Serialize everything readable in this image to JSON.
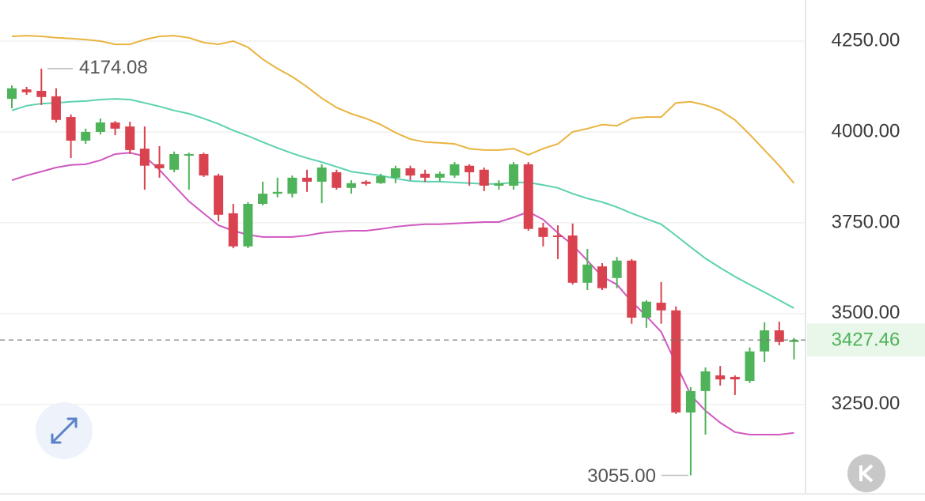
{
  "chart_data": {
    "type": "candlestick",
    "ylim": [
      3004,
      4363
    ],
    "yticks": [
      {
        "value": 4250,
        "label": "4250.00"
      },
      {
        "value": 4000,
        "label": "4000.00"
      },
      {
        "value": 3750,
        "label": "3750.00"
      },
      {
        "value": 3500,
        "label": "3500.00"
      },
      {
        "value": 3250,
        "label": "3250.00"
      }
    ],
    "grid": true,
    "up_color": "#4fb35a",
    "down_color": "#d8434f",
    "open": [
      4091,
      4117,
      4113,
      4098,
      4041,
      3976,
      4000,
      4026,
      4015,
      3954,
      3911,
      3896,
      3935,
      3939,
      3880,
      3776,
      3685,
      3802,
      3830,
      3830,
      3874,
      3863,
      3889,
      3846,
      3863,
      3859,
      3874,
      3900,
      3885,
      3874,
      3880,
      3907,
      3896,
      3852,
      3852,
      3911,
      3737,
      3715,
      3715,
      3585,
      3630,
      3598,
      3646,
      3489,
      3530,
      3509,
      3228,
      3287,
      3330,
      3326,
      3315,
      3396,
      3454,
      3422
    ],
    "high": [
      4128,
      4124,
      4174.08,
      4120,
      4048,
      4009,
      4037,
      4030,
      4028,
      4015,
      3961,
      3946,
      3943,
      3943,
      3885,
      3802,
      3807,
      3863,
      3874,
      3880,
      3896,
      3911,
      3896,
      3867,
      3867,
      3885,
      3907,
      3907,
      3896,
      3891,
      3917,
      3911,
      3902,
      3867,
      3917,
      3917,
      3750,
      3743,
      3748,
      3678,
      3639,
      3656,
      3650,
      3537,
      3587,
      3520,
      3298,
      3352,
      3356,
      3330,
      3407,
      3476,
      3478,
      3433
    ],
    "low": [
      4065,
      4102,
      4074,
      4026,
      3928,
      3967,
      3993,
      3991,
      3939,
      3841,
      3874,
      3889,
      3841,
      3876,
      3754,
      3680,
      3680,
      3798,
      3820,
      3820,
      3835,
      3804,
      3841,
      3830,
      3852,
      3857,
      3859,
      3867,
      3863,
      3863,
      3874,
      3852,
      3837,
      3841,
      3841,
      3728,
      3685,
      3650,
      3580,
      3565,
      3565,
      3570,
      3472,
      3461,
      3472,
      3224,
      3055,
      3167,
      3302,
      3276,
      3309,
      3367,
      3413,
      3374
    ],
    "close": [
      4120,
      4109,
      4096,
      4033,
      3976,
      4000,
      4026,
      4009,
      3950,
      3907,
      3900,
      3939,
      3939,
      3880,
      3772,
      3685,
      3802,
      3830,
      3835,
      3874,
      3863,
      3902,
      3846,
      3859,
      3857,
      3878,
      3900,
      3880,
      3874,
      3885,
      3911,
      3889,
      3852,
      3859,
      3911,
      3733,
      3711,
      3711,
      3585,
      3635,
      3570,
      3646,
      3489,
      3533,
      3509,
      3228,
      3287,
      3341,
      3319,
      3319,
      3396,
      3454,
      3422,
      3427.46
    ],
    "bands": [
      {
        "color": "#e9b440",
        "values": [
          4263,
          4265,
          4263,
          4259,
          4257,
          4254,
          4250,
          4241,
          4241,
          4254,
          4263,
          4265,
          4259,
          4246,
          4241,
          4250,
          4233,
          4200,
          4174,
          4152,
          4124,
          4093,
          4067,
          4050,
          4037,
          4020,
          3998,
          3980,
          3972,
          3970,
          3967,
          3954,
          3950,
          3950,
          3954,
          3937,
          3954,
          3967,
          4000,
          4009,
          4020,
          4017,
          4037,
          4041,
          4041,
          4080,
          4083,
          4074,
          4059,
          4033,
          3993,
          3950,
          3907,
          3859
        ]
      },
      {
        "color": "#5cd2b0",
        "values": [
          4059,
          4072,
          4078,
          4080,
          4083,
          4085,
          4089,
          4091,
          4089,
          4080,
          4070,
          4059,
          4050,
          4037,
          4022,
          4004,
          3989,
          3972,
          3956,
          3941,
          3928,
          3917,
          3904,
          3891,
          3885,
          3880,
          3872,
          3865,
          3863,
          3863,
          3861,
          3859,
          3857,
          3857,
          3861,
          3861,
          3854,
          3846,
          3830,
          3817,
          3807,
          3793,
          3776,
          3761,
          3746,
          3715,
          3683,
          3652,
          3626,
          3602,
          3580,
          3559,
          3537,
          3515
        ]
      },
      {
        "color": "#d058c0",
        "values": [
          3867,
          3880,
          3891,
          3902,
          3909,
          3911,
          3922,
          3939,
          3943,
          3933,
          3896,
          3852,
          3809,
          3776,
          3743,
          3728,
          3717,
          3711,
          3711,
          3711,
          3715,
          3722,
          3726,
          3728,
          3728,
          3733,
          3739,
          3743,
          3746,
          3746,
          3748,
          3750,
          3752,
          3752,
          3765,
          3780,
          3759,
          3722,
          3689,
          3646,
          3602,
          3580,
          3533,
          3493,
          3450,
          3363,
          3276,
          3233,
          3200,
          3174,
          3167,
          3167,
          3167,
          3172
        ]
      }
    ],
    "high_marker": 4174.08,
    "low_marker": {
      "value": 3055,
      "label": "3055.00"
    },
    "last_price": 3427.46
  }
}
